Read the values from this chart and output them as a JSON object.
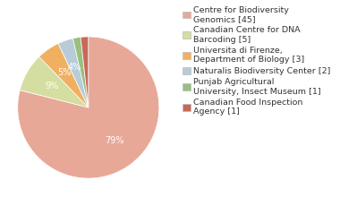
{
  "labels": [
    "Centre for Biodiversity\nGenomics [45]",
    "Canadian Centre for DNA\nBarcoding [5]",
    "Universita di Firenze,\nDepartment of Biology [3]",
    "Naturalis Biodiversity Center [2]",
    "Punjab Agricultural\nUniversity, Insect Museum [1]",
    "Canadian Food Inspection\nAgency [1]"
  ],
  "values": [
    45,
    5,
    3,
    2,
    1,
    1
  ],
  "colors": [
    "#e8a898",
    "#d4dea0",
    "#f0b060",
    "#b8ccd8",
    "#98c080",
    "#c86858"
  ],
  "background_color": "#ffffff",
  "text_color": "#333333",
  "fontsize": 7.0,
  "legend_fontsize": 6.8
}
